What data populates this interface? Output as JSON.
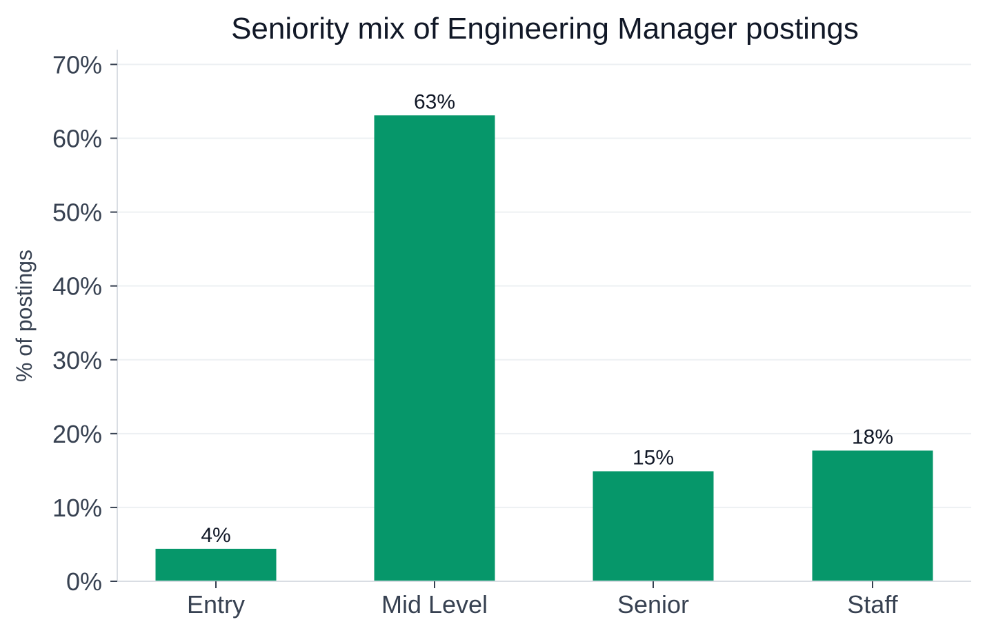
{
  "chart_data": {
    "type": "bar",
    "title": "Seniority mix of Engineering Manager postings",
    "ylabel": "% of postings",
    "xlabel": "",
    "categories": [
      "Entry",
      "Mid Level",
      "Senior",
      "Staff"
    ],
    "values": [
      4.4,
      63.1,
      14.9,
      17.7
    ],
    "data_labels": [
      "4%",
      "63%",
      "15%",
      "18%"
    ],
    "ylim": [
      0,
      72
    ],
    "yticks": [
      0,
      10,
      20,
      30,
      40,
      50,
      60,
      70
    ],
    "ytick_labels": [
      "0%",
      "10%",
      "20%",
      "30%",
      "40%",
      "50%",
      "60%",
      "70%"
    ],
    "grid": "horizontal",
    "legend": "none",
    "colors": {
      "bar": "#06976a",
      "grid": "#edf0f3",
      "axis": "#d9dde3",
      "text": "#374151",
      "title": "#111827"
    }
  }
}
